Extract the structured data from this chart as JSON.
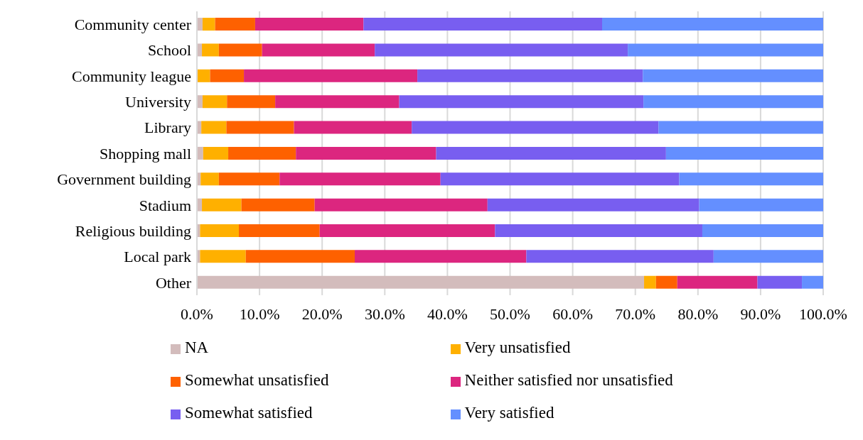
{
  "chart_data": {
    "type": "bar",
    "orientation": "horizontal",
    "stacked": true,
    "categories": [
      "Community center",
      "School",
      "Community league",
      "University",
      "Library",
      "Shopping mall",
      "Government building",
      "Stadium",
      "Religious building",
      "Local park",
      "Other"
    ],
    "series": [
      {
        "name": "NA",
        "color": "#d3bcbc",
        "values": [
          0.9,
          0.8,
          0.1,
          0.9,
          0.7,
          1.0,
          0.6,
          0.8,
          0.5,
          0.5,
          71.4
        ]
      },
      {
        "name": "Very unsatisfied",
        "color": "#ffb000",
        "values": [
          2.0,
          2.7,
          2.0,
          3.9,
          4.0,
          4.0,
          2.9,
          6.3,
          6.2,
          7.3,
          1.9
        ]
      },
      {
        "name": "Somewhat unsatisfied",
        "color": "#fe6100",
        "values": [
          6.4,
          6.9,
          5.4,
          7.7,
          10.8,
          10.8,
          9.7,
          11.7,
          12.9,
          17.4,
          3.4
        ]
      },
      {
        "name": "Neither satisfied nor unsatisfied",
        "color": "#dc267f",
        "values": [
          17.3,
          18.0,
          27.7,
          19.8,
          18.8,
          22.4,
          25.7,
          27.6,
          28.0,
          27.4,
          12.8
        ]
      },
      {
        "name": "Somewhat satisfied",
        "color": "#785ef0",
        "values": [
          38.1,
          40.4,
          36.0,
          39.0,
          39.4,
          36.7,
          38.1,
          33.8,
          33.1,
          29.9,
          7.1
        ]
      },
      {
        "name": "Very satisfied",
        "color": "#648fff",
        "values": [
          35.3,
          31.2,
          28.8,
          28.7,
          26.3,
          25.1,
          23.0,
          19.8,
          19.3,
          17.5,
          3.4
        ]
      }
    ],
    "xlim": [
      0,
      100
    ],
    "xticks": [
      {
        "value": 0,
        "label": "0.0%"
      },
      {
        "value": 10,
        "label": "10.0%"
      },
      {
        "value": 20,
        "label": "20.0%"
      },
      {
        "value": 30,
        "label": "30.0%"
      },
      {
        "value": 40,
        "label": "40.0%"
      },
      {
        "value": 50,
        "label": "50.0%"
      },
      {
        "value": 60,
        "label": "60.0%"
      },
      {
        "value": 70,
        "label": "70.0%"
      },
      {
        "value": 80,
        "label": "80.0%"
      },
      {
        "value": 90,
        "label": "90.0%"
      },
      {
        "value": 100,
        "label": "100.0%"
      }
    ],
    "grid": "x",
    "legend": "bottom"
  }
}
